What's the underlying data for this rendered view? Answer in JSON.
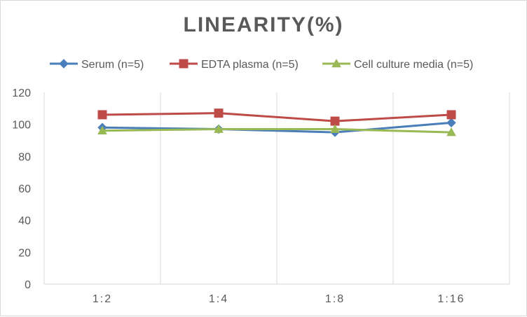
{
  "chart_data": {
    "type": "line",
    "title": "LINEARITY(%)",
    "categories": [
      "1:2",
      "1:4",
      "1:8",
      "1:16"
    ],
    "ylim": [
      0,
      120
    ],
    "yticks": [
      0,
      20,
      40,
      60,
      80,
      100,
      120
    ],
    "grid": "vertical",
    "legend_position": "top",
    "series": [
      {
        "name": "Serum (n=5)",
        "values": [
          98,
          97,
          95,
          101
        ],
        "color": "#4a7ebb",
        "marker": "diamond"
      },
      {
        "name": "EDTA plasma (n=5)",
        "values": [
          106,
          107,
          102,
          106
        ],
        "color": "#be4b48",
        "marker": "square"
      },
      {
        "name": "Cell culture media (n=5)",
        "values": [
          96,
          97,
          97,
          95
        ],
        "color": "#98b954",
        "marker": "triangle"
      }
    ]
  }
}
